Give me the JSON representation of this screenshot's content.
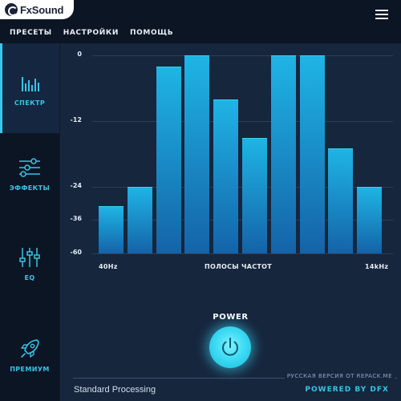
{
  "app": {
    "logo_text": "FxSound"
  },
  "menu": {
    "items": [
      {
        "label": "ПРЕСЕТЫ"
      },
      {
        "label": "НАСТРОЙКИ"
      },
      {
        "label": "ПОМОЩЬ"
      }
    ]
  },
  "sidebar": {
    "items": [
      {
        "label": "СПЕКТР",
        "icon": "spectrum-icon",
        "active": true
      },
      {
        "label": "ЭФФЕКТЫ",
        "icon": "sliders-icon",
        "active": false
      },
      {
        "label": "EQ",
        "icon": "eq-icon",
        "active": false
      },
      {
        "label": "ПРЕМИУМ",
        "icon": "rocket-icon",
        "active": false
      }
    ]
  },
  "chart_data": {
    "type": "bar",
    "xlabel": "ПОЛОСЫ ЧАСТОТ",
    "x_start_label": "40Hz",
    "x_end_label": "14kHz",
    "y_ticks": [
      "0",
      "-12",
      "-24",
      "-36",
      "-60"
    ],
    "bar_count": 10,
    "values": [
      -31,
      -24,
      -2,
      0,
      -8,
      -15,
      0,
      0,
      -17,
      -24
    ]
  },
  "power": {
    "label": "POWER"
  },
  "footer": {
    "watermark": "РУССКАЯ ВЕРСИЯ ОТ REPACK.ME",
    "status": "Standard Processing",
    "powered_by": "POWERED BY DFX"
  },
  "colors": {
    "accent": "#37c4e6",
    "background": "#16263d",
    "sidebar": "#0c1524",
    "bar_top": "#1fb4e4",
    "bar_bottom": "#1463a8"
  }
}
